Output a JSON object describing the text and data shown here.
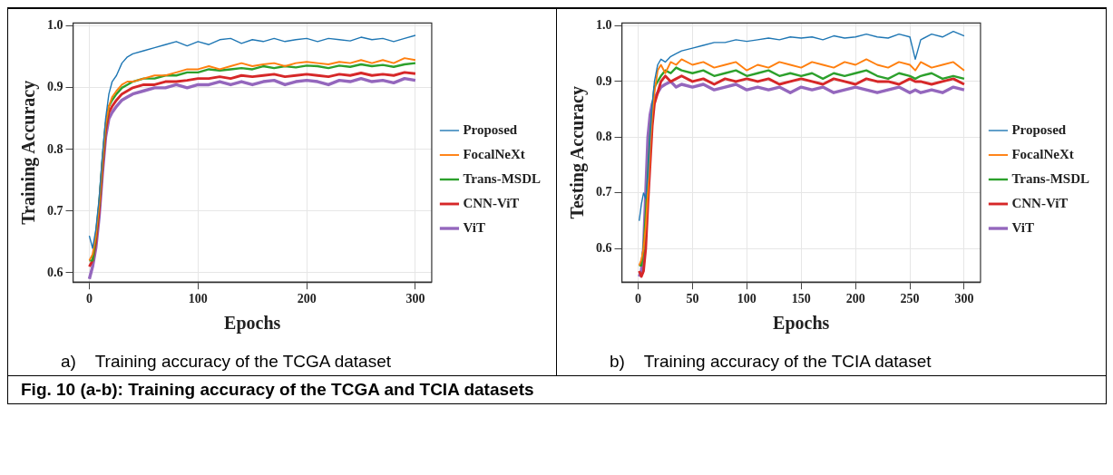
{
  "chart_data": [
    {
      "type": "line",
      "xlabel": "Epochs",
      "ylabel": "Training Accuracy",
      "xlim": [
        -15,
        315
      ],
      "ylim": [
        0.585,
        1.005
      ],
      "xticks": [
        0,
        100,
        200,
        300
      ],
      "yticks": [
        0.6,
        0.7,
        0.8,
        0.9,
        {
          "value": 1,
          "label": "1.0"
        }
      ],
      "grid": true,
      "legend": "right",
      "marker": "none",
      "line_style": "solid",
      "x": [
        0,
        3,
        6,
        9,
        12,
        15,
        18,
        21,
        25,
        30,
        35,
        40,
        50,
        60,
        70,
        80,
        90,
        100,
        110,
        120,
        130,
        140,
        150,
        160,
        170,
        180,
        190,
        200,
        210,
        220,
        230,
        240,
        250,
        260,
        270,
        280,
        290,
        300
      ],
      "series": [
        {
          "name": "Proposed",
          "color": "#1f77b4",
          "values": [
            0.66,
            0.64,
            0.67,
            0.72,
            0.79,
            0.85,
            0.89,
            0.91,
            0.92,
            0.94,
            0.95,
            0.955,
            0.96,
            0.965,
            0.97,
            0.975,
            0.968,
            0.975,
            0.97,
            0.978,
            0.98,
            0.972,
            0.978,
            0.975,
            0.98,
            0.975,
            0.978,
            0.98,
            0.975,
            0.98,
            0.978,
            0.976,
            0.982,
            0.978,
            0.98,
            0.975,
            0.98,
            0.985
          ]
        },
        {
          "name": "FocalNeXt",
          "color": "#ff7f0e",
          "values": [
            0.62,
            0.63,
            0.66,
            0.71,
            0.78,
            0.84,
            0.87,
            0.885,
            0.895,
            0.905,
            0.91,
            0.91,
            0.915,
            0.92,
            0.92,
            0.925,
            0.93,
            0.93,
            0.935,
            0.93,
            0.935,
            0.94,
            0.935,
            0.938,
            0.94,
            0.935,
            0.94,
            0.942,
            0.94,
            0.938,
            0.942,
            0.94,
            0.945,
            0.94,
            0.945,
            0.94,
            0.948,
            0.945
          ]
        },
        {
          "name": "Trans-MSDL",
          "color": "#2ca02c",
          "values": [
            0.62,
            0.62,
            0.66,
            0.71,
            0.78,
            0.84,
            0.87,
            0.88,
            0.89,
            0.9,
            0.905,
            0.91,
            0.915,
            0.915,
            0.92,
            0.92,
            0.925,
            0.925,
            0.93,
            0.928,
            0.93,
            0.932,
            0.93,
            0.935,
            0.932,
            0.935,
            0.933,
            0.936,
            0.935,
            0.932,
            0.936,
            0.934,
            0.938,
            0.935,
            0.937,
            0.934,
            0.938,
            0.94
          ]
        },
        {
          "name": "CNN-ViT",
          "color": "#d62728",
          "values": [
            0.61,
            0.62,
            0.65,
            0.7,
            0.77,
            0.83,
            0.86,
            0.87,
            0.88,
            0.89,
            0.895,
            0.9,
            0.905,
            0.905,
            0.91,
            0.91,
            0.912,
            0.915,
            0.915,
            0.918,
            0.915,
            0.92,
            0.918,
            0.92,
            0.922,
            0.918,
            0.92,
            0.922,
            0.92,
            0.918,
            0.922,
            0.92,
            0.924,
            0.92,
            0.922,
            0.92,
            0.925,
            0.923
          ]
        },
        {
          "name": "ViT",
          "color": "#9467bd",
          "values": [
            0.59,
            0.61,
            0.64,
            0.69,
            0.76,
            0.82,
            0.85,
            0.86,
            0.87,
            0.88,
            0.885,
            0.89,
            0.895,
            0.9,
            0.9,
            0.905,
            0.9,
            0.905,
            0.905,
            0.91,
            0.905,
            0.91,
            0.905,
            0.91,
            0.912,
            0.905,
            0.91,
            0.912,
            0.91,
            0.905,
            0.912,
            0.91,
            0.915,
            0.91,
            0.912,
            0.908,
            0.915,
            0.912
          ]
        }
      ],
      "annotations": [
        "a)    Training accuracy of the TCGA dataset"
      ]
    },
    {
      "type": "line",
      "xlabel": "Epochs",
      "ylabel": "Testing Accuracy",
      "xlim": [
        -15,
        315
      ],
      "ylim": [
        0.54,
        1.005
      ],
      "xticks": [
        0,
        50,
        100,
        150,
        200,
        250,
        300
      ],
      "yticks": [
        0.6,
        0.7,
        0.8,
        0.9,
        {
          "value": 1,
          "label": "1.0"
        }
      ],
      "grid": true,
      "legend": "right",
      "marker": "none",
      "line_style": "solid",
      "x": [
        1,
        3,
        5,
        7,
        9,
        11,
        13,
        15,
        18,
        21,
        25,
        30,
        35,
        40,
        50,
        60,
        70,
        80,
        90,
        100,
        110,
        120,
        130,
        140,
        150,
        160,
        170,
        180,
        190,
        200,
        210,
        220,
        230,
        240,
        250,
        255,
        260,
        270,
        280,
        290,
        300
      ],
      "series": [
        {
          "name": "Proposed",
          "color": "#1f77b4",
          "values": [
            0.65,
            0.68,
            0.7,
            0.69,
            0.73,
            0.8,
            0.86,
            0.9,
            0.93,
            0.94,
            0.935,
            0.945,
            0.95,
            0.955,
            0.96,
            0.965,
            0.97,
            0.97,
            0.975,
            0.972,
            0.975,
            0.978,
            0.975,
            0.98,
            0.978,
            0.98,
            0.975,
            0.982,
            0.978,
            0.98,
            0.985,
            0.98,
            0.978,
            0.985,
            0.98,
            0.94,
            0.975,
            0.985,
            0.98,
            0.99,
            0.982
          ]
        },
        {
          "name": "FocalNeXt",
          "color": "#ff7f0e",
          "values": [
            0.57,
            0.58,
            0.6,
            0.64,
            0.7,
            0.78,
            0.84,
            0.88,
            0.92,
            0.93,
            0.915,
            0.935,
            0.93,
            0.94,
            0.93,
            0.935,
            0.925,
            0.93,
            0.935,
            0.92,
            0.93,
            0.925,
            0.935,
            0.93,
            0.925,
            0.935,
            0.93,
            0.925,
            0.935,
            0.93,
            0.94,
            0.93,
            0.925,
            0.935,
            0.93,
            0.92,
            0.935,
            0.925,
            0.93,
            0.935,
            0.92
          ]
        },
        {
          "name": "Trans-MSDL",
          "color": "#2ca02c",
          "values": [
            0.57,
            0.57,
            0.6,
            0.66,
            0.73,
            0.8,
            0.85,
            0.89,
            0.9,
            0.91,
            0.92,
            0.915,
            0.925,
            0.92,
            0.915,
            0.92,
            0.91,
            0.915,
            0.92,
            0.91,
            0.915,
            0.92,
            0.91,
            0.915,
            0.91,
            0.915,
            0.905,
            0.915,
            0.91,
            0.915,
            0.92,
            0.91,
            0.905,
            0.915,
            0.91,
            0.905,
            0.91,
            0.915,
            0.905,
            0.91,
            0.905
          ]
        },
        {
          "name": "CNN-ViT",
          "color": "#d62728",
          "values": [
            0.56,
            0.55,
            0.56,
            0.6,
            0.68,
            0.75,
            0.82,
            0.86,
            0.88,
            0.9,
            0.91,
            0.9,
            0.905,
            0.91,
            0.9,
            0.905,
            0.895,
            0.905,
            0.9,
            0.905,
            0.9,
            0.905,
            0.895,
            0.9,
            0.905,
            0.9,
            0.895,
            0.905,
            0.9,
            0.895,
            0.905,
            0.9,
            0.9,
            0.895,
            0.905,
            0.9,
            0.9,
            0.895,
            0.9,
            0.905,
            0.895
          ]
        },
        {
          "name": "ViT",
          "color": "#9467bd",
          "values": [
            0.55,
            0.56,
            0.6,
            0.7,
            0.8,
            0.84,
            0.86,
            0.87,
            0.88,
            0.89,
            0.895,
            0.9,
            0.89,
            0.895,
            0.89,
            0.895,
            0.885,
            0.89,
            0.895,
            0.885,
            0.89,
            0.885,
            0.89,
            0.88,
            0.89,
            0.885,
            0.89,
            0.88,
            0.885,
            0.89,
            0.885,
            0.88,
            0.885,
            0.89,
            0.88,
            0.885,
            0.88,
            0.885,
            0.88,
            0.89,
            0.885
          ]
        }
      ],
      "annotations": [
        "b)    Training accuracy of the TCIA dataset",
        "Fig. 10 (a-b): Training accuracy of the TCGA and TCIA datasets"
      ]
    }
  ]
}
